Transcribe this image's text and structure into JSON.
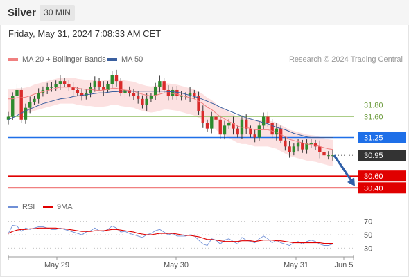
{
  "header": {
    "title": "Silver",
    "timeframe": "30 MIN"
  },
  "datetime": "Friday, May 31, 2024 7:08:33 AM CET",
  "legend": {
    "ma20": {
      "label": "MA 20 + Bollinger Bands",
      "color": "#f08080"
    },
    "ma50": {
      "label": "MA 50",
      "color": "#3a5f9f"
    }
  },
  "credit": "Research © 2024 Trading Central",
  "rsi_legend": {
    "rsi": {
      "label": "RSI",
      "color": "#6f8fd6"
    },
    "ma9": {
      "label": "9MA",
      "color": "#e00000"
    }
  },
  "chart_data": {
    "type": "candlestick",
    "price_range": [
      30.24,
      32.4
    ],
    "x_ticks": [
      "May 29",
      "May 30",
      "May 31",
      "Jun 5"
    ],
    "levels": [
      {
        "value": 31.8,
        "label": "31.80",
        "kind": "resistance",
        "color": "#8fbc5f"
      },
      {
        "value": 31.6,
        "label": "31.60",
        "kind": "resistance",
        "color": "#8fbc5f"
      },
      {
        "value": 31.25,
        "label": "31.25",
        "kind": "pivot",
        "color": "#1e6fe8"
      },
      {
        "value": 30.95,
        "label": "30.95",
        "kind": "last",
        "color": "#333333"
      },
      {
        "value": 30.6,
        "label": "30.60",
        "kind": "support",
        "color": "#e00000"
      },
      {
        "value": 30.4,
        "label": "30.40",
        "kind": "support",
        "color": "#e00000"
      }
    ],
    "close_path": [
      31.6,
      31.95,
      32.05,
      31.55,
      31.75,
      31.85,
      31.9,
      32.0,
      32.05,
      32.1,
      32.1,
      32.15,
      32.2,
      32.15,
      32.1,
      32.05,
      32.0,
      31.95,
      32.0,
      32.1,
      32.2,
      32.1,
      32.05,
      32.15,
      32.3,
      32.2,
      32.0,
      32.05,
      32.0,
      31.95,
      31.9,
      31.8,
      31.9,
      31.95,
      32.1,
      32.2,
      32.05,
      31.95,
      32.05,
      31.95,
      31.95,
      31.95,
      32.0,
      31.95,
      31.7,
      31.5,
      31.4,
      31.6,
      31.55,
      31.3,
      31.45,
      31.5,
      31.4,
      31.3,
      31.55,
      31.4,
      31.3,
      31.25,
      31.45,
      31.6,
      31.5,
      31.3,
      31.4,
      31.2,
      31.1,
      31.0,
      31.1,
      31.15,
      31.05,
      31.15,
      31.15,
      31.1,
      31.0,
      30.95,
      30.95,
      30.95
    ],
    "ma20": [
      31.9,
      31.9,
      31.92,
      31.92,
      31.93,
      31.95,
      31.98,
      32.0,
      32.02,
      32.04,
      32.06,
      32.08,
      32.1,
      32.1,
      32.1,
      32.1,
      32.08,
      32.07,
      32.06,
      32.06,
      32.05,
      32.04,
      32.05,
      32.06,
      32.08,
      32.08,
      32.06,
      32.05,
      32.04,
      32.03,
      32.0,
      31.98,
      31.96,
      31.95,
      31.96,
      31.98,
      32.0,
      32.0,
      31.99,
      31.98,
      31.96,
      31.94,
      31.92,
      31.9,
      31.86,
      31.82,
      31.76,
      31.72,
      31.66,
      31.6,
      31.56,
      31.52,
      31.48,
      31.44,
      31.42,
      31.42,
      31.4,
      31.38,
      31.38,
      31.38,
      31.38,
      31.36,
      31.34,
      31.3,
      31.26,
      31.22,
      31.2,
      31.18,
      31.16,
      31.14,
      31.13,
      31.12,
      31.1,
      31.08,
      31.06,
      31.05
    ],
    "ma50": [
      31.55,
      31.58,
      31.62,
      31.66,
      31.7,
      31.73,
      31.76,
      31.79,
      31.82,
      31.84,
      31.86,
      31.88,
      31.9,
      31.91,
      31.92,
      31.94,
      31.95,
      31.96,
      31.97,
      31.98,
      31.99,
      32.0,
      32.0,
      32.01,
      32.02,
      32.02,
      32.03,
      32.03,
      32.03,
      32.03,
      32.03,
      32.03,
      32.03,
      32.03,
      32.03,
      32.03,
      32.03,
      32.02,
      32.02,
      32.01,
      32.0,
      31.98,
      31.96,
      31.94,
      31.92,
      31.89,
      31.86,
      31.83,
      31.8,
      31.76,
      31.73,
      31.7,
      31.67,
      31.64,
      31.61,
      31.58,
      31.56,
      31.54,
      31.52,
      31.5,
      31.48,
      31.45,
      31.42,
      31.4,
      31.38,
      31.35,
      31.32,
      31.3,
      31.28,
      31.26,
      31.25,
      31.25,
      31.25,
      31.25,
      31.25,
      31.25
    ],
    "forecast_arrow": {
      "from": 30.95,
      "to": 30.45
    },
    "rsi": {
      "range": [
        20,
        80
      ],
      "ticks": [
        70,
        50,
        30
      ],
      "values": [
        52,
        64,
        63,
        55,
        60,
        58,
        60,
        62,
        62,
        60,
        58,
        58,
        60,
        58,
        56,
        54,
        52,
        50,
        54,
        56,
        60,
        56,
        55,
        58,
        63,
        60,
        54,
        55,
        52,
        50,
        48,
        46,
        50,
        52,
        56,
        58,
        54,
        50,
        52,
        48,
        48,
        48,
        50,
        48,
        42,
        36,
        34,
        44,
        42,
        36,
        42,
        44,
        40,
        36,
        46,
        42,
        40,
        38,
        44,
        48,
        44,
        38,
        42,
        38,
        36,
        34,
        38,
        40,
        36,
        40,
        42,
        40,
        36,
        34,
        34,
        36
      ],
      "ma9": [
        52,
        55,
        57,
        58,
        58,
        59,
        59,
        60,
        60,
        60,
        60,
        60,
        59,
        59,
        58,
        57,
        56,
        55,
        55,
        55,
        56,
        56,
        56,
        57,
        58,
        58,
        57,
        56,
        55,
        54,
        52,
        51,
        50,
        50,
        51,
        52,
        52,
        52,
        52,
        51,
        50,
        49,
        49,
        48,
        47,
        45,
        43,
        43,
        42,
        41,
        40,
        40,
        40,
        40,
        41,
        41,
        41,
        40,
        41,
        42,
        42,
        42,
        41,
        41,
        40,
        39,
        38,
        38,
        38,
        38,
        38,
        38,
        38,
        37,
        37,
        37
      ]
    }
  }
}
